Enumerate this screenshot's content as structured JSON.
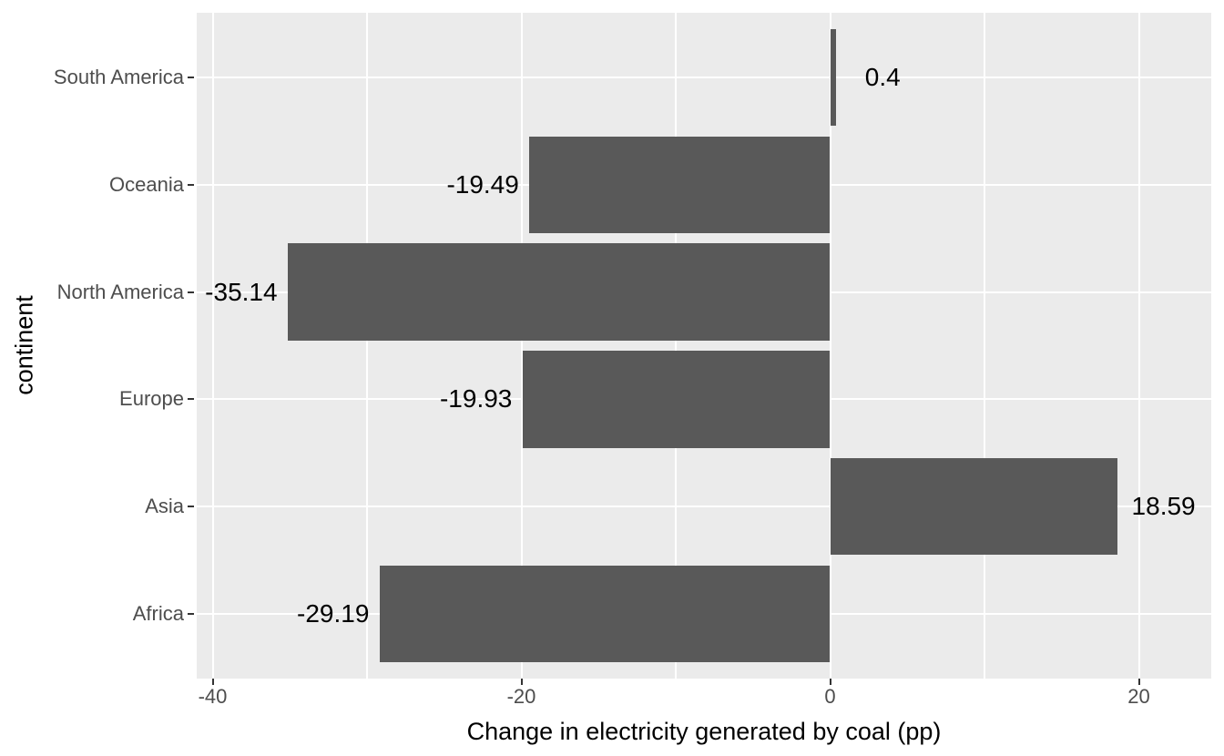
{
  "chart_data": {
    "type": "bar",
    "orientation": "horizontal",
    "title": "",
    "xlabel": "Change in electricity generated by coal (pp)",
    "ylabel": "continent",
    "categories": [
      "South America",
      "Oceania",
      "North America",
      "Europe",
      "Asia",
      "Africa"
    ],
    "values": [
      0.4,
      -19.49,
      -35.14,
      -19.93,
      18.59,
      -29.19
    ],
    "bar_labels": [
      "0.4",
      "-19.49",
      "-35.14",
      "-19.93",
      "18.59",
      "-29.19"
    ],
    "x_ticks": [
      -40,
      -20,
      0,
      20
    ],
    "x_tick_labels": [
      "-40",
      "-20",
      "0",
      "20"
    ],
    "x_minor_ticks": [
      -30,
      -10,
      10
    ],
    "xlim": [
      -41.1,
      24.7
    ],
    "grid": true,
    "legend": false,
    "colors": {
      "bar": "#595959",
      "panel_background": "#EBEBEB",
      "gridline": "#FFFFFF",
      "axis_text": "#4D4D4D",
      "axis_tick": "#333333",
      "value_label": "#000000",
      "axis_title": "#000000",
      "figure_background": "#FFFFFF"
    }
  }
}
